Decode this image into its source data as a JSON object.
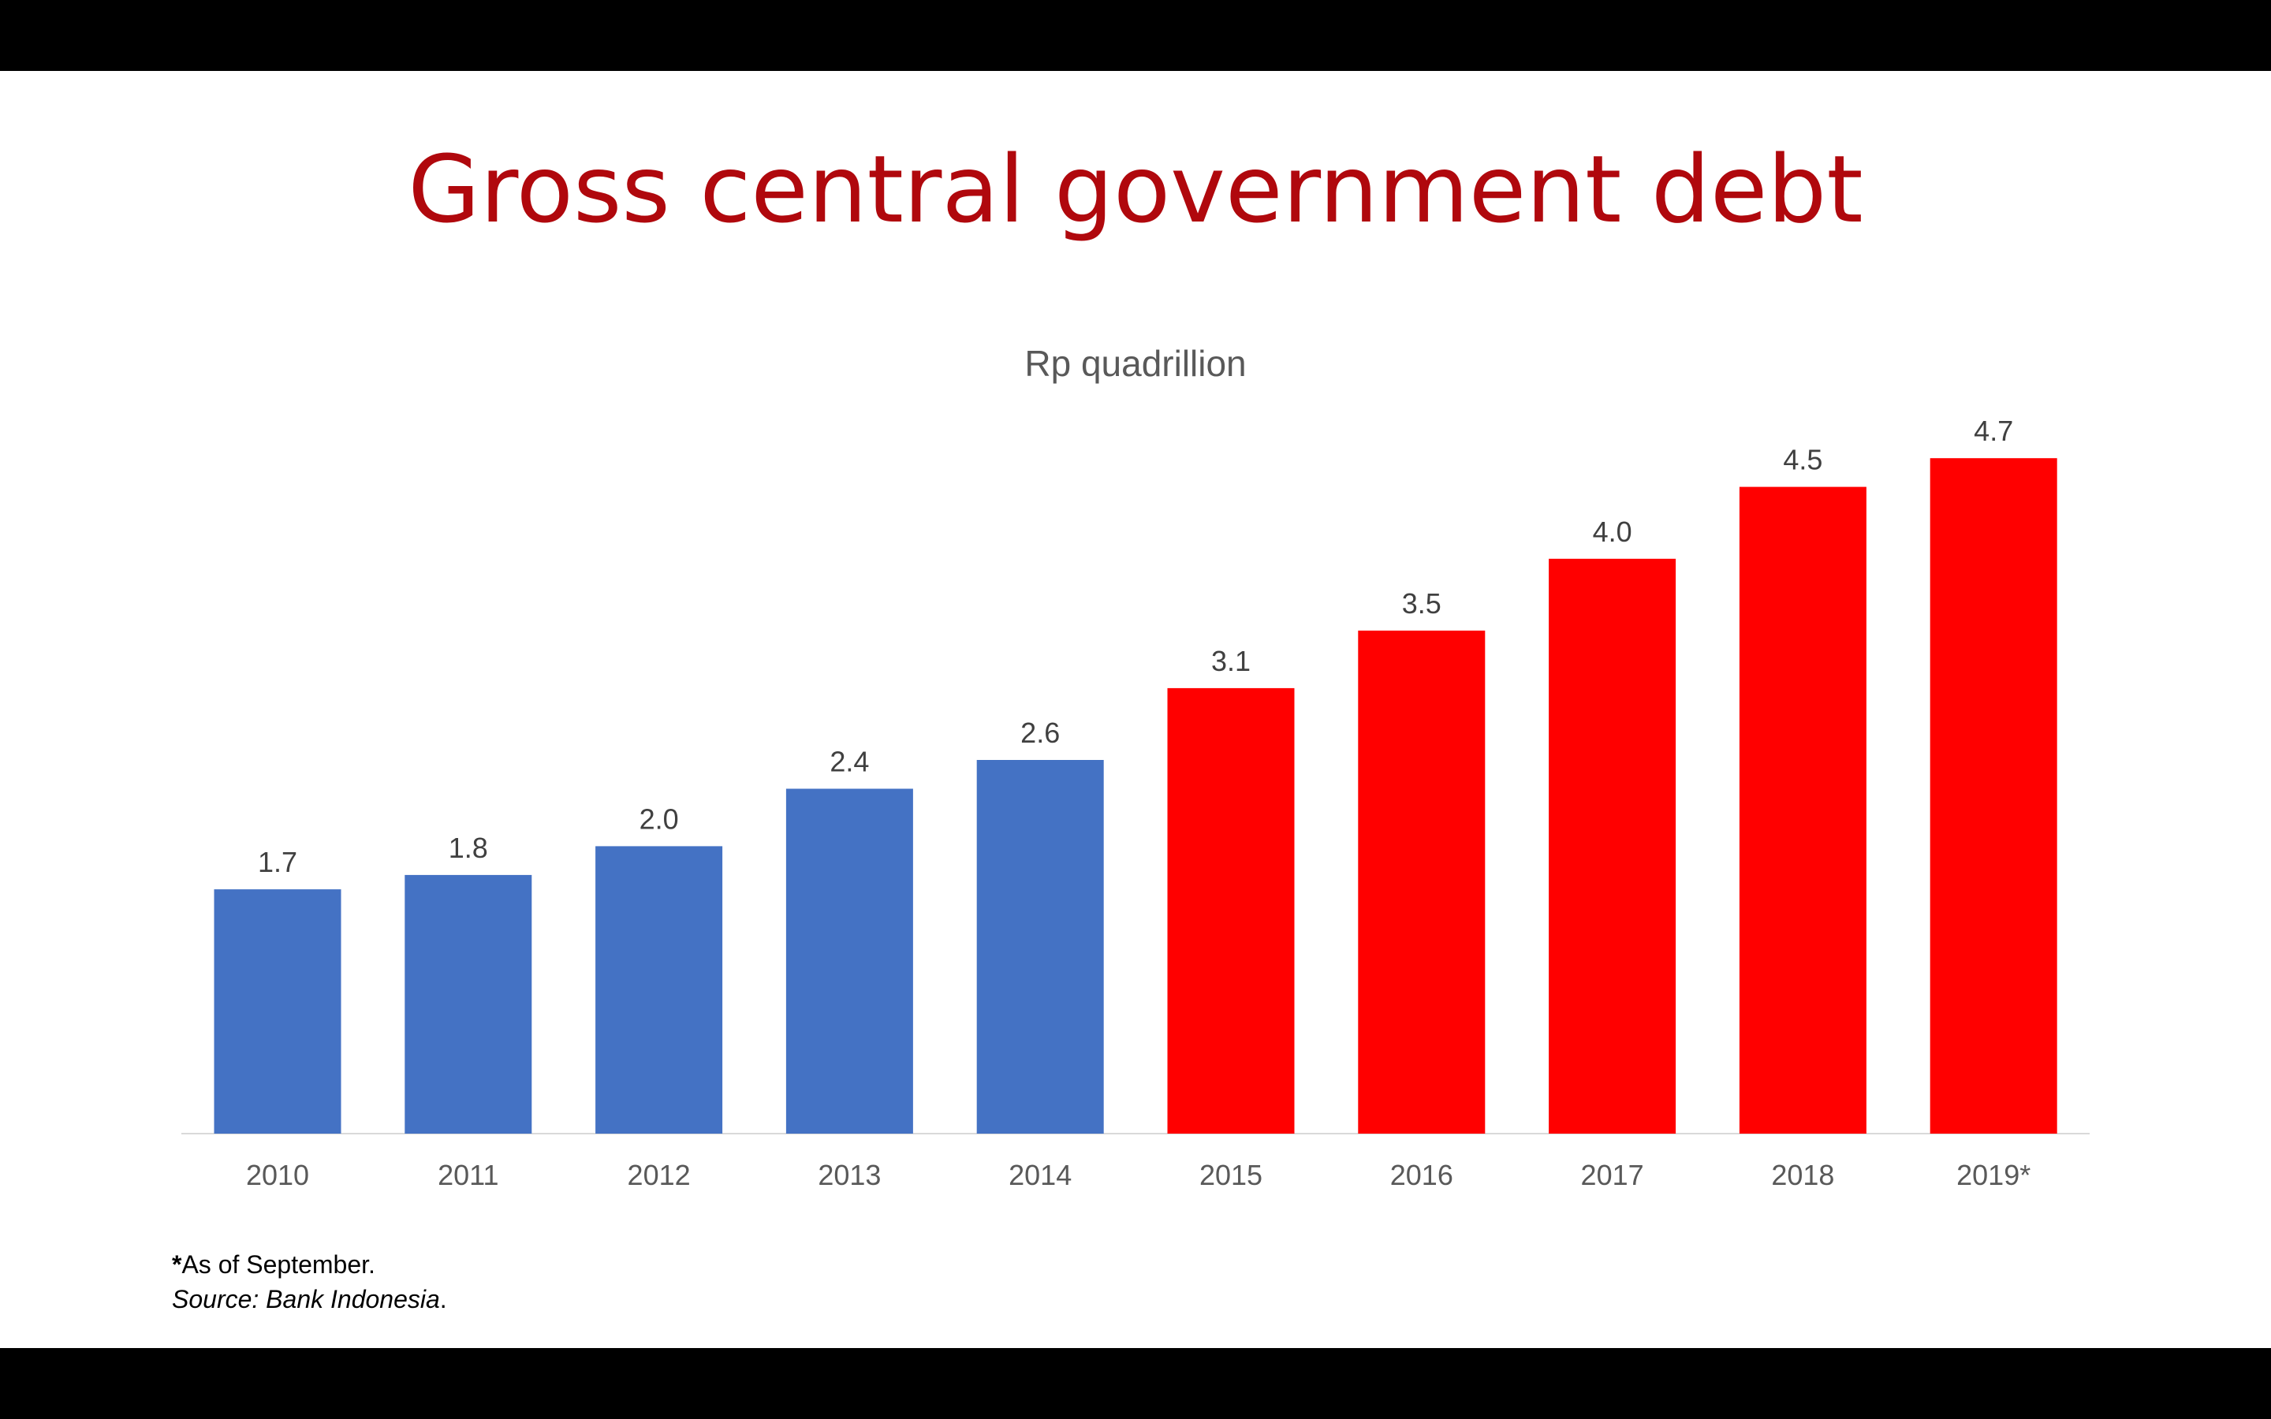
{
  "slide": {
    "title": "Gross central government debt",
    "footnote_marker": "*",
    "footnote_text": "As of September.",
    "source_label": "Source: Bank Indonesia",
    "source_end": "."
  },
  "colors": {
    "title": "#b0080d",
    "blue_bar": "#4472c4",
    "red_bar": "#ff0000",
    "axis": "#d9d9d9"
  },
  "chart_data": {
    "type": "bar",
    "title": "Rp quadrillion",
    "xlabel": "",
    "ylabel": "",
    "ylim": [
      0,
      5
    ],
    "grid": false,
    "categories": [
      "2010",
      "2011",
      "2012",
      "2013",
      "2014",
      "2015",
      "2016",
      "2017",
      "2018",
      "2019*"
    ],
    "values": [
      1.7,
      1.8,
      2.0,
      2.4,
      2.6,
      3.1,
      3.5,
      4.0,
      4.5,
      4.7
    ],
    "value_labels": [
      "1.7",
      "1.8",
      "2.0",
      "2.4",
      "2.6",
      "3.1",
      "3.5",
      "4.0",
      "4.5",
      "4.7"
    ],
    "bar_colors": [
      "#4472c4",
      "#4472c4",
      "#4472c4",
      "#4472c4",
      "#4472c4",
      "#ff0000",
      "#ff0000",
      "#ff0000",
      "#ff0000",
      "#ff0000"
    ]
  }
}
